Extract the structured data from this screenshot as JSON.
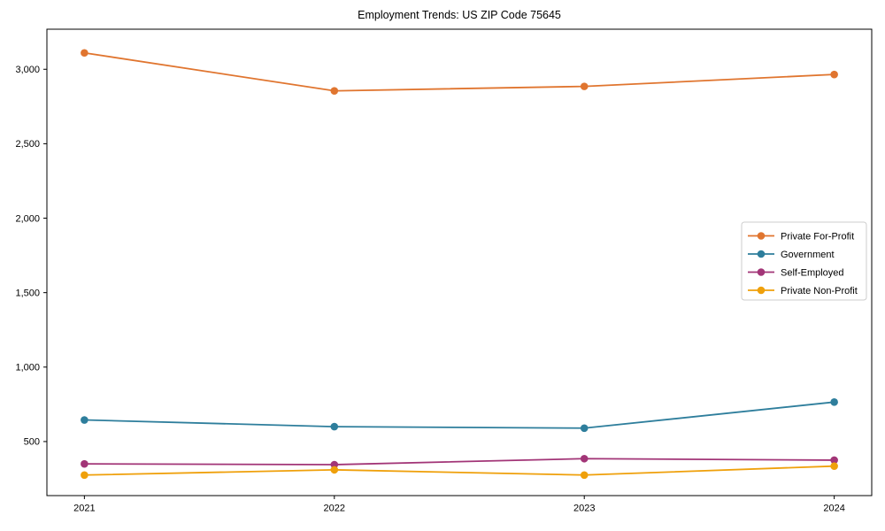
{
  "chart_data": {
    "type": "line",
    "title": "Employment Trends: US ZIP Code 75645",
    "xlabel": "",
    "ylabel": "",
    "x": [
      2021,
      2022,
      2023,
      2024
    ],
    "x_tick_labels": [
      "2021",
      "2022",
      "2023",
      "2024"
    ],
    "y_ticks": [
      {
        "value": 500,
        "label": "500"
      },
      {
        "value": 1000,
        "label": "1,000"
      },
      {
        "value": 1500,
        "label": "1,500"
      },
      {
        "value": 2000,
        "label": "2,000"
      },
      {
        "value": 2500,
        "label": "2,500"
      },
      {
        "value": 3000,
        "label": "3,000"
      }
    ],
    "xlim": [
      2020.85,
      2024.15
    ],
    "ylim": [
      137,
      3269
    ],
    "grid": false,
    "marker": "circle",
    "series": [
      {
        "name": "Private For-Profit",
        "color": "#e0752f",
        "values": [
          3110,
          2855,
          2885,
          2965
        ]
      },
      {
        "name": "Government",
        "color": "#2e7e9c",
        "values": [
          645,
          600,
          590,
          765
        ]
      },
      {
        "name": "Self-Employed",
        "color": "#a23577",
        "values": [
          350,
          345,
          385,
          375
        ]
      },
      {
        "name": "Private Non-Profit",
        "color": "#efa00b",
        "values": [
          275,
          310,
          275,
          335
        ]
      }
    ],
    "legend": {
      "position": "center right",
      "background": "#ffffff",
      "border_color": "#cccccc"
    },
    "axes": {
      "frame_color": "#000000",
      "tick_color": "#000000",
      "text_color": "#000000"
    }
  }
}
